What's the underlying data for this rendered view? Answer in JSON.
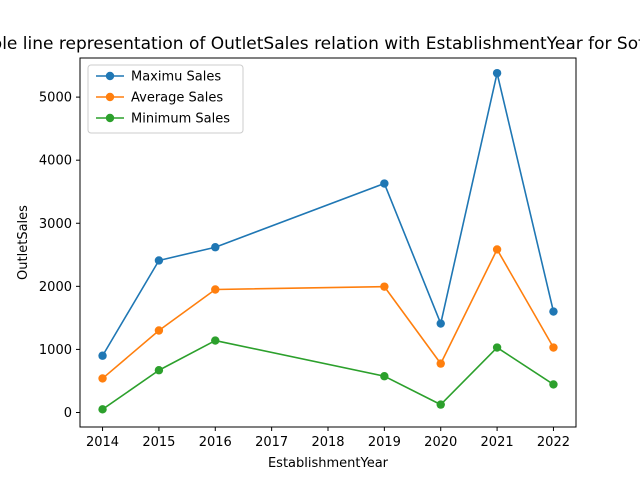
{
  "chart_data": {
    "type": "line",
    "title": "Multiple line representation of OutletSales relation with EstablishmentYear for Soft Drinks",
    "xlabel": "EstablishmentYear",
    "ylabel": "OutletSales",
    "x": [
      2014,
      2015,
      2016,
      2019,
      2020,
      2021,
      2022
    ],
    "x_ticks": [
      2014,
      2015,
      2016,
      2017,
      2018,
      2019,
      2020,
      2021,
      2022
    ],
    "y_ticks": [
      0,
      1000,
      2000,
      3000,
      4000,
      5000
    ],
    "xlim": [
      2013.6,
      2022.4
    ],
    "ylim": [
      -230,
      5620
    ],
    "grid": false,
    "legend_position": "top-left",
    "series": [
      {
        "name": "Maximu Sales",
        "color": "#1f77b4",
        "values": [
          900,
          2410,
          2620,
          3630,
          1410,
          5380,
          1600
        ]
      },
      {
        "name": "Average Sales",
        "color": "#ff7f0e",
        "values": [
          540,
          1300,
          1950,
          1995,
          775,
          2585,
          1030
        ]
      },
      {
        "name": "Minimum Sales",
        "color": "#2ca02c",
        "values": [
          50,
          670,
          1140,
          575,
          125,
          1030,
          445
        ]
      }
    ]
  }
}
